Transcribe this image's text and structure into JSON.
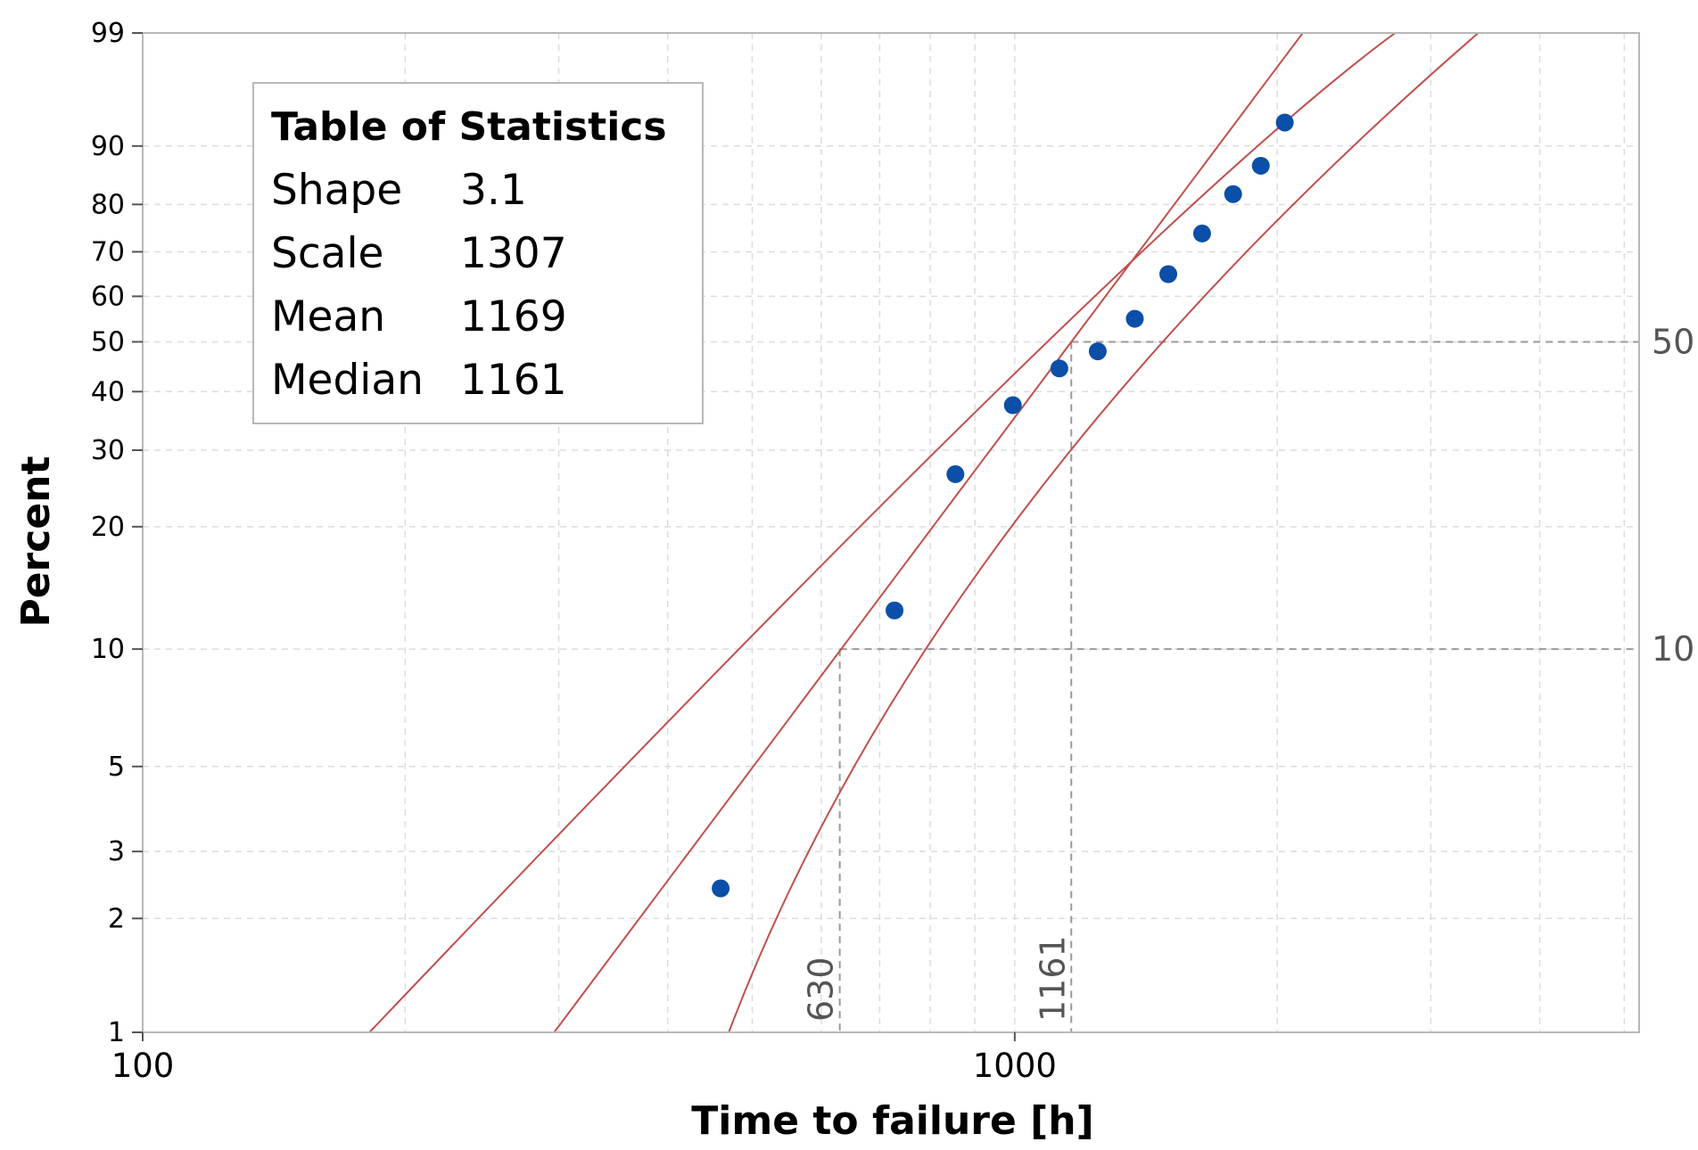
{
  "chart_data": {
    "type": "scatter",
    "xlabel": "Time to failure [h]",
    "ylabel": "Percent",
    "x_scale": "log",
    "y_scale": "weibull",
    "xlim": [
      100,
      5200
    ],
    "ylim": [
      1,
      99
    ],
    "x_ticks": [
      {
        "value": 100,
        "label": "100"
      },
      {
        "value": 1000,
        "label": "1000"
      }
    ],
    "y_ticks": [
      {
        "value": 1,
        "label": "1"
      },
      {
        "value": 2,
        "label": "2"
      },
      {
        "value": 3,
        "label": "3"
      },
      {
        "value": 5,
        "label": "5"
      },
      {
        "value": 10,
        "label": "10"
      },
      {
        "value": 20,
        "label": "20"
      },
      {
        "value": 30,
        "label": "30"
      },
      {
        "value": 40,
        "label": "40"
      },
      {
        "value": 50,
        "label": "50"
      },
      {
        "value": 60,
        "label": "60"
      },
      {
        "value": 70,
        "label": "70"
      },
      {
        "value": 80,
        "label": "80"
      },
      {
        "value": 90,
        "label": "90"
      },
      {
        "value": 99,
        "label": "99"
      }
    ],
    "grid": true,
    "points": {
      "color": "#0b4fa8",
      "x": [
        460,
        728,
        855,
        995,
        1125,
        1245,
        1373,
        1500,
        1640,
        1780,
        1915,
        2040
      ],
      "y": [
        2.4,
        12.5,
        26.5,
        37.5,
        44.5,
        48,
        55,
        65,
        74,
        82,
        87,
        93
      ]
    },
    "fit_line": {
      "color": "#c0504d",
      "shape": 3.1,
      "scale": 1307
    },
    "confidence_bands": {
      "color": "#c0504d",
      "upper": {
        "x": [
          182,
          1000,
          2730
        ],
        "y": [
          1,
          43.5,
          99
        ]
      },
      "lower": {
        "x": [
          470,
          1000,
          3400
        ],
        "y": [
          1,
          20.5,
          99
        ]
      }
    },
    "reference_lines": [
      {
        "percent": 10,
        "x": 630,
        "x_label": "630",
        "y_label": "10"
      },
      {
        "percent": 50,
        "x": 1161,
        "x_label": "1161",
        "y_label": "50"
      }
    ],
    "stats_box": {
      "title": "Table of Statistics",
      "rows": [
        {
          "label": "Shape",
          "value": "3.1"
        },
        {
          "label": "Scale",
          "value": "1307"
        },
        {
          "label": "Mean",
          "value": "1169"
        },
        {
          "label": "Median",
          "value": "1161"
        }
      ]
    }
  }
}
